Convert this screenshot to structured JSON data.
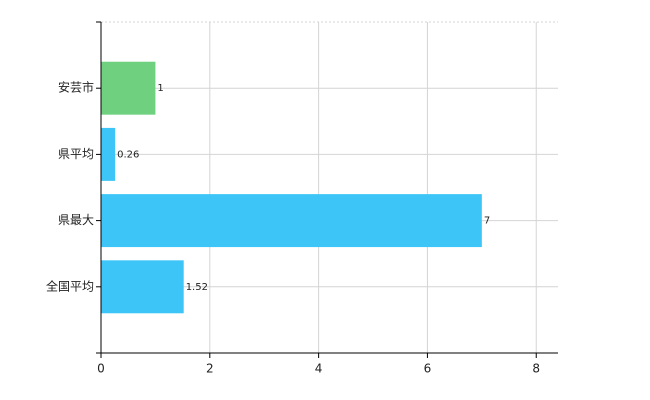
{
  "chart_data": {
    "type": "hbar",
    "categories": [
      "安芸市",
      "県平均",
      "県最大",
      "全国平均"
    ],
    "values": [
      1,
      0.26,
      7,
      1.52
    ],
    "colors": [
      "#6fd17f",
      "#3ec5f7",
      "#3ec5f7",
      "#3ec5f7"
    ],
    "xlim": [
      0,
      8.4
    ],
    "xticks": [
      0,
      2,
      4,
      6,
      8
    ],
    "grid": true
  }
}
